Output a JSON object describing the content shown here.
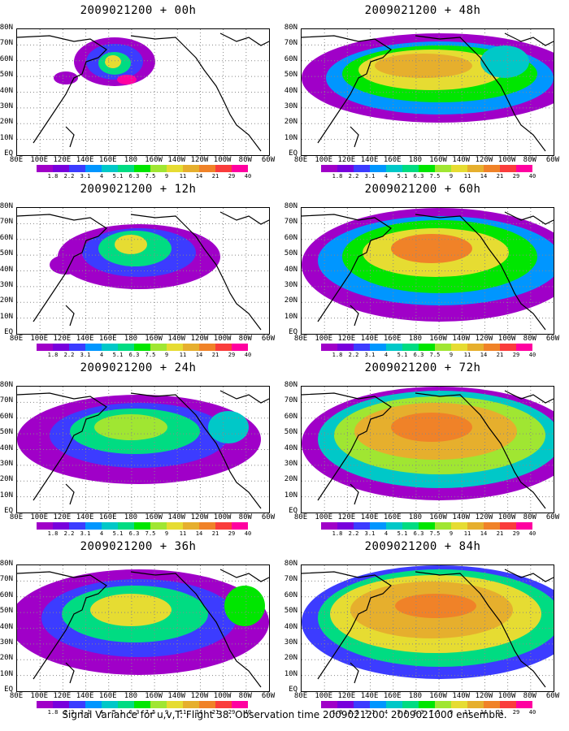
{
  "caption": "Signal Variance for u,v,T. Flight 38. Observation time 2009021200. 2009021000 ensemble.",
  "panels": [
    {
      "title": "2009021200 + 00h"
    },
    {
      "title": "2009021200 + 48h"
    },
    {
      "title": "2009021200 + 12h"
    },
    {
      "title": "2009021200 + 60h"
    },
    {
      "title": "2009021200 + 24h"
    },
    {
      "title": "2009021200 + 72h"
    },
    {
      "title": "2009021200 + 36h"
    },
    {
      "title": "2009021200 + 84h"
    }
  ],
  "lat_labels": [
    "80N",
    "70N",
    "60N",
    "50N",
    "40N",
    "30N",
    "20N",
    "10N",
    "EQ"
  ],
  "lon_labels": [
    "80E",
    "100E",
    "120E",
    "140E",
    "160E",
    "180",
    "160W",
    "140W",
    "120W",
    "100W",
    "80W",
    "60W"
  ],
  "colorbar": {
    "labels": [
      "1.8",
      "2.2",
      "3.1",
      "4",
      "5.1",
      "6.3",
      "7.5",
      "9",
      "11",
      "14",
      "21",
      "29",
      "40"
    ],
    "colors": [
      "#a000c8",
      "#7800dc",
      "#3c3cff",
      "#0096ff",
      "#00c8c8",
      "#00dc82",
      "#00e600",
      "#a0e632",
      "#e6dc32",
      "#e6af2d",
      "#f08228",
      "#fa3c3c",
      "#ff00a0"
    ]
  },
  "map_data": {
    "land_color": "#ffffff",
    "coast_color": "#000000",
    "grid": "dotted"
  }
}
